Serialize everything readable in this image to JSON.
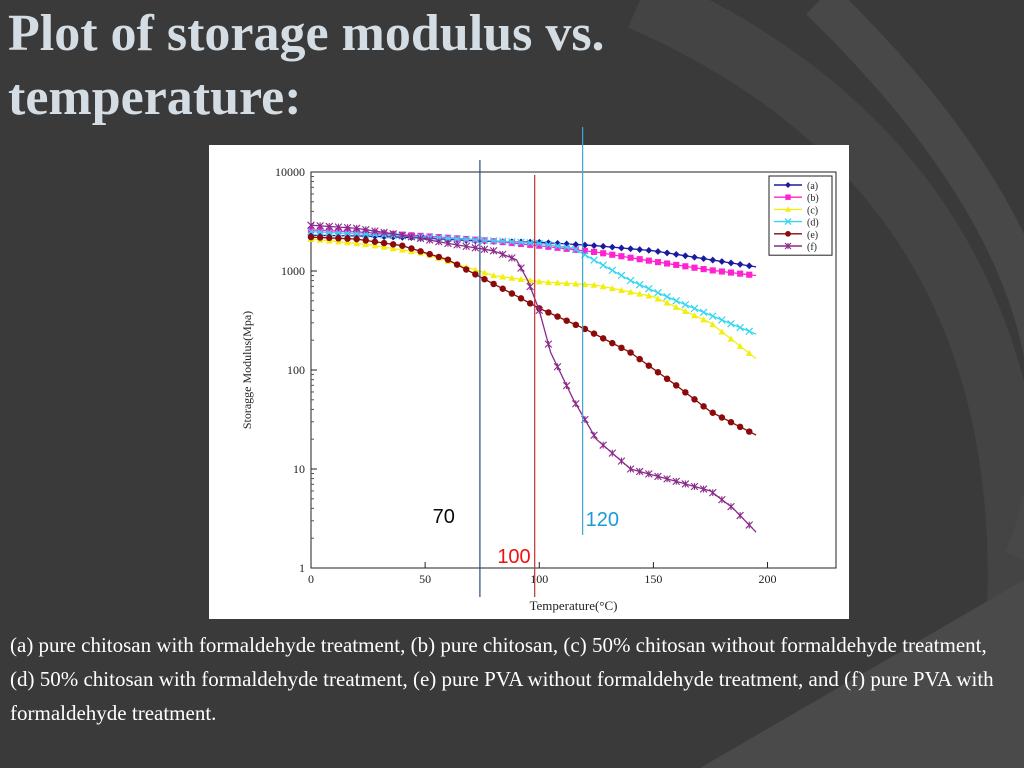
{
  "slide": {
    "title_line1": "Plot of storage modulus vs.",
    "title_line2": "temperature:",
    "caption": "(a) pure chitosan with formaldehyde treatment, (b) pure chitosan, (c) 50% chitosan without formaldehyde  treatment, (d) 50% chitosan with formaldehyde treatment, (e) pure PVA without formaldehyde treatment, and (f) pure PVA with formaldehyde treatment.",
    "background_color": "#3a3a3a",
    "title_color": "#d4dde3"
  },
  "chart_data": {
    "type": "line",
    "title": "",
    "xlabel": "Temperature(°C)",
    "ylabel": "Storagge Modulus(Mpa)",
    "xlim": [
      0,
      230
    ],
    "ylim": [
      1,
      10000
    ],
    "y_scale": "log",
    "x_ticks": [
      0,
      50,
      100,
      150,
      200
    ],
    "y_ticks": [
      1,
      10,
      100,
      1000,
      10000
    ],
    "x_tick_labels": [
      "0",
      "50",
      "100",
      "150",
      "200"
    ],
    "y_tick_labels": [
      "1",
      "10",
      "100",
      "1000",
      "10000"
    ],
    "legend_position": "top-right",
    "grid": false,
    "series": [
      {
        "name": "(a)",
        "color": "#1a1aa0",
        "marker": "diamond",
        "x": [
          0,
          25,
          50,
          75,
          100,
          125,
          150,
          175,
          195
        ],
        "y": [
          2300,
          2250,
          2150,
          2000,
          1950,
          1800,
          1600,
          1300,
          1100
        ]
      },
      {
        "name": "(b)",
        "color": "#ff22d0",
        "marker": "square",
        "x": [
          0,
          25,
          50,
          75,
          100,
          125,
          150,
          175,
          195
        ],
        "y": [
          2600,
          2450,
          2250,
          2050,
          1800,
          1550,
          1250,
          1020,
          900
        ]
      },
      {
        "name": "(c)",
        "color": "#f2ef10",
        "marker": "triangle",
        "x": [
          0,
          25,
          50,
          65,
          80,
          100,
          125,
          150,
          175,
          195
        ],
        "y": [
          2100,
          1850,
          1500,
          1150,
          900,
          780,
          720,
          550,
          300,
          130
        ]
      },
      {
        "name": "(d)",
        "color": "#33d6f0",
        "marker": "x",
        "x": [
          0,
          25,
          50,
          75,
          100,
          115,
          125,
          140,
          160,
          180,
          195
        ],
        "y": [
          2500,
          2350,
          2200,
          2050,
          1900,
          1700,
          1250,
          800,
          500,
          320,
          230
        ]
      },
      {
        "name": "(e)",
        "color": "#8b0a0a",
        "marker": "circle",
        "x": [
          0,
          20,
          40,
          60,
          75,
          90,
          100,
          120,
          140,
          160,
          175,
          195
        ],
        "y": [
          2200,
          2100,
          1800,
          1300,
          850,
          560,
          420,
          260,
          150,
          70,
          38,
          22
        ]
      },
      {
        "name": "(f)",
        "color": "#8a2a8a",
        "marker": "asterisk",
        "x": [
          0,
          20,
          40,
          60,
          80,
          90,
          95,
          100,
          105,
          115,
          125,
          140,
          160,
          175,
          185,
          195
        ],
        "y": [
          2900,
          2700,
          2300,
          1900,
          1600,
          1300,
          800,
          400,
          150,
          50,
          20,
          10,
          7.5,
          6,
          4,
          2.3
        ]
      }
    ],
    "reference_lines": [
      {
        "x": 74,
        "label": "70",
        "color": "#2b4a88",
        "label_color": "#0a0a0a"
      },
      {
        "x": 98,
        "label": "100",
        "color": "#c03030",
        "label_color": "#ee1111"
      },
      {
        "x": 119,
        "label": "120",
        "color": "#3aa8d0",
        "label_color": "#1a9ad8"
      }
    ]
  }
}
